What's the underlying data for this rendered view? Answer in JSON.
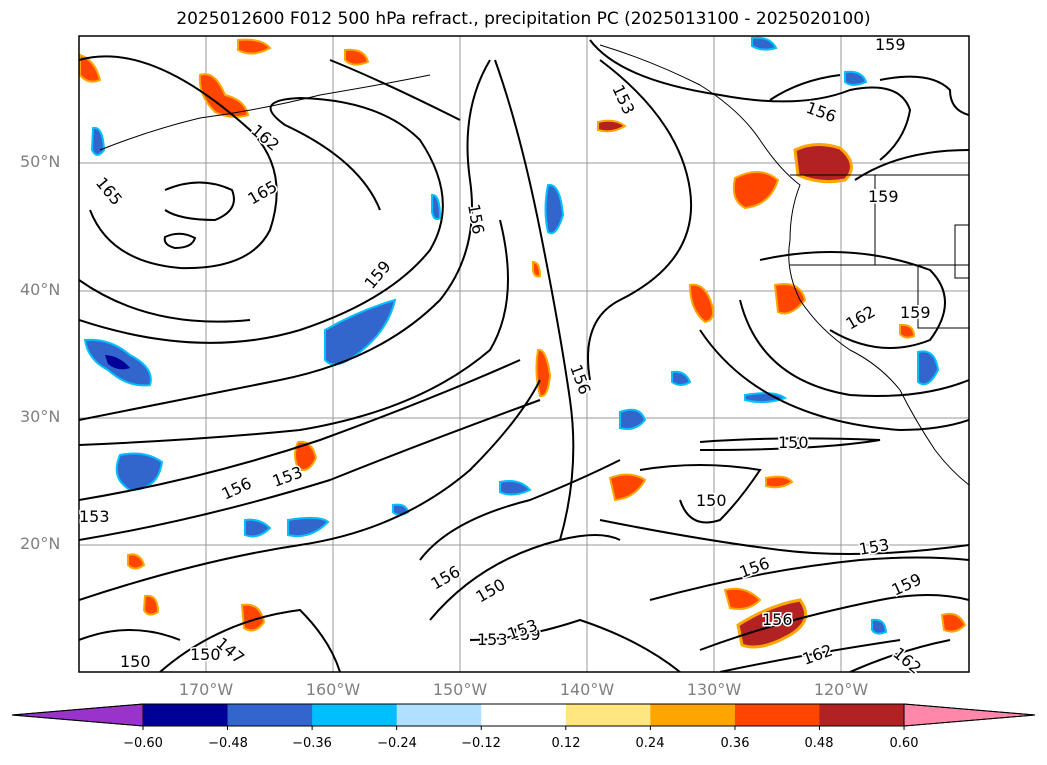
{
  "title": "2025012600 F012 500 hPa refract., precipitation PC (2025013100 - 2025020100)",
  "lat_labels": [
    "50°N",
    "40°N",
    "30°N",
    "20°N"
  ],
  "lon_labels": [
    "170°W",
    "160°W",
    "150°W",
    "140°W",
    "130°W",
    "120°W"
  ],
  "contour_labels": [
    "159",
    "153",
    "156",
    "162",
    "165",
    "165",
    "159",
    "156",
    "159",
    "162",
    "159",
    "156",
    "150",
    "150",
    "156",
    "153",
    "156",
    "153",
    "150",
    "156",
    "150",
    "153",
    "159",
    "147",
    "150",
    "162",
    "162",
    "153",
    "159",
    "156",
    "153"
  ],
  "colorbar": {
    "ticks": [
      "−0.60",
      "−0.48",
      "−0.36",
      "−0.24",
      "−0.12",
      "0.12",
      "0.24",
      "0.36",
      "0.48",
      "0.60"
    ],
    "colors": [
      "#9933cc",
      "#000099",
      "#3366cc",
      "#00bfff",
      "#b0e0ff",
      "#ffffff",
      "#ffe680",
      "#ffa500",
      "#ff4500",
      "#b22222",
      "#ff88aa"
    ]
  }
}
